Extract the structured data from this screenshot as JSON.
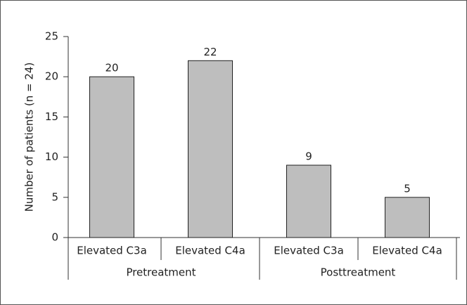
{
  "chart_data": {
    "type": "bar",
    "ylabel": "Number of patients (n = 24)",
    "groups": [
      {
        "name": "Pretreatment",
        "categories": [
          "Elevated C3a",
          "Elevated C4a"
        ],
        "values": [
          20,
          22
        ]
      },
      {
        "name": "Posttreatment",
        "categories": [
          "Elevated C3a",
          "Elevated C4a"
        ],
        "values": [
          9,
          5
        ]
      }
    ],
    "color": "#bebebe",
    "ylim": [
      0,
      25
    ],
    "yticks": [
      0,
      5,
      10,
      15,
      20,
      25
    ]
  }
}
